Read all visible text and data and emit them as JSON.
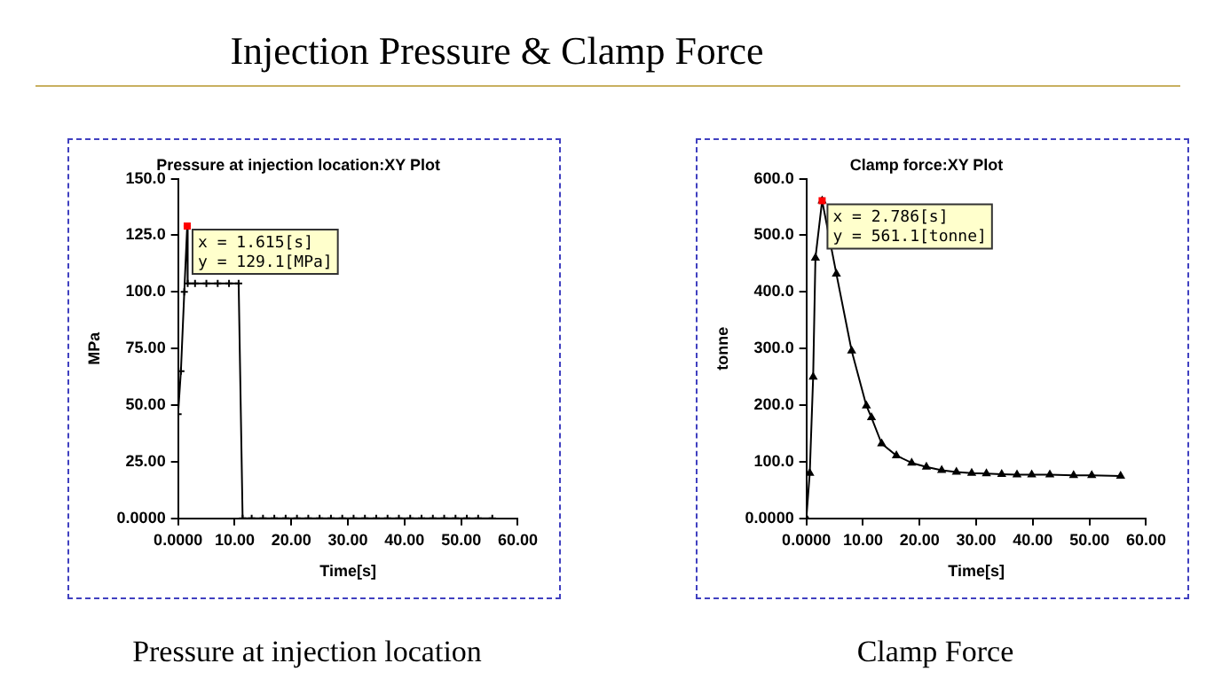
{
  "chart_data": [
    {
      "type": "other",
      "title": "Injection Pressure & Clamp Force"
    },
    {
      "type": "line",
      "title": "Pressure at injection location:XY Plot",
      "xlabel": "Time[s]",
      "ylabel": "MPa",
      "marker": "cross",
      "grid": false,
      "legend": false,
      "x": [
        0,
        0.5,
        1.1,
        1.615,
        1.7,
        3,
        5,
        7,
        9,
        10.7,
        11.4,
        13,
        15,
        17,
        19,
        21,
        23,
        25,
        27,
        29,
        31,
        33,
        35,
        37,
        39,
        41,
        43,
        45,
        47,
        49,
        51,
        53,
        55.5
      ],
      "series": [
        {
          "color": "#000000",
          "values": [
            46,
            65,
            100,
            129.1,
            103.8,
            103.8,
            103.8,
            103.8,
            103.8,
            103.8,
            0,
            0,
            0,
            0,
            0,
            0,
            0,
            0,
            0,
            0,
            0,
            0,
            0,
            0,
            0,
            0,
            0,
            0,
            0,
            0,
            0,
            0,
            0
          ]
        }
      ],
      "xlim": [
        0,
        60
      ],
      "xticks": [
        {
          "value": 0,
          "label": "0.0000"
        },
        {
          "value": 10,
          "label": "10.00"
        },
        {
          "value": 20,
          "label": "20.00"
        },
        {
          "value": 30,
          "label": "30.00"
        },
        {
          "value": 40,
          "label": "40.00"
        },
        {
          "value": 50,
          "label": "50.00"
        },
        {
          "value": 60,
          "label": "60.00"
        }
      ],
      "ylim": [
        0,
        150
      ],
      "yticks": [
        {
          "value": 0,
          "label": "0.0000"
        },
        {
          "value": 25,
          "label": "25.00"
        },
        {
          "value": 50,
          "label": "50.00"
        },
        {
          "value": 75,
          "label": "75.00"
        },
        {
          "value": 100,
          "label": "100.0"
        },
        {
          "value": 125,
          "label": "125.0"
        },
        {
          "value": 150,
          "label": "150.0"
        }
      ],
      "annotations": [
        {
          "text": "x = 1.615[s]\ny = 129.1[MPa]",
          "x": 1.615,
          "y": 129.1
        },
        "Pressure at injection location"
      ]
    },
    {
      "type": "line",
      "title": "Clamp force:XY Plot",
      "xlabel": "Time[s]",
      "ylabel": "tonne",
      "marker": "triangle",
      "grid": false,
      "legend": false,
      "x": [
        0,
        0.6,
        1.2,
        1.6,
        2.786,
        5.3,
        8,
        10.6,
        11.5,
        13.3,
        15.9,
        18.6,
        21.2,
        23.9,
        26.5,
        29.2,
        31.8,
        34.5,
        37.2,
        39.8,
        43,
        47.2,
        50.4,
        55.5
      ],
      "series": [
        {
          "color": "#000000",
          "values": [
            0,
            80,
            250,
            460,
            561.1,
            432,
            296,
            199,
            178,
            132,
            111,
            98,
            91,
            85,
            82,
            80,
            79,
            78,
            77,
            77,
            77,
            76,
            76,
            75
          ]
        }
      ],
      "xlim": [
        0,
        60
      ],
      "xticks": [
        {
          "value": 0,
          "label": "0.0000"
        },
        {
          "value": 10,
          "label": "10.00"
        },
        {
          "value": 20,
          "label": "20.00"
        },
        {
          "value": 30,
          "label": "30.00"
        },
        {
          "value": 40,
          "label": "40.00"
        },
        {
          "value": 50,
          "label": "50.00"
        },
        {
          "value": 60,
          "label": "60.00"
        }
      ],
      "ylim": [
        0,
        600
      ],
      "yticks": [
        {
          "value": 0,
          "label": "0.0000"
        },
        {
          "value": 100,
          "label": "100.0"
        },
        {
          "value": 200,
          "label": "200.0"
        },
        {
          "value": 300,
          "label": "300.0"
        },
        {
          "value": 400,
          "label": "400.0"
        },
        {
          "value": 500,
          "label": "500.0"
        },
        {
          "value": 600,
          "label": "600.0"
        }
      ],
      "annotations": [
        {
          "text": "x = 2.786[s]\ny = 561.1[tonne]",
          "x": 2.786,
          "y": 561.1
        },
        "Clamp Force"
      ]
    }
  ]
}
